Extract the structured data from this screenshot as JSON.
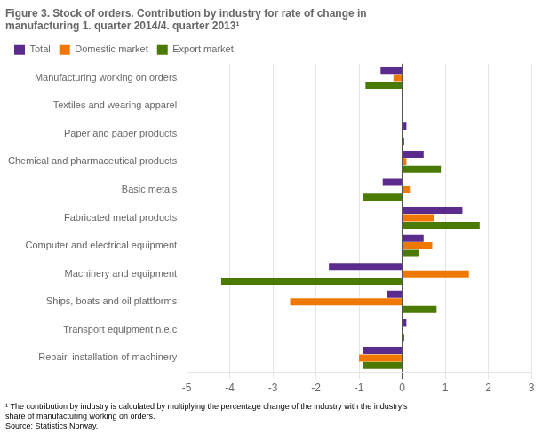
{
  "chart_data": {
    "type": "bar",
    "orientation": "horizontal",
    "title": "Figure 3. Stock of orders. Contribution by industry for rate of change in\nmanufacturing 1. quarter 2014/4. quarter 2013¹",
    "footnote": "¹ The contribution by industry is calculated by multiplying the percentage change of the industry with the industry's\nshare of manufacturing working on orders.\nSource: Statistics Norway.",
    "categories": [
      "Manufacturing working on orders",
      "Textiles and wearing apparel",
      "Paper and paper products",
      "Chemical and pharmaceutical products",
      "Basic metals",
      "Fabricated metal products",
      "Computer and electrical equipment",
      "Machinery and equipment",
      "Ships, boats and oil plattforms",
      "Transport equipment n.e.c",
      "Repair, installation of machinery"
    ],
    "series": [
      {
        "name": "Total",
        "color": "#5b2c8d",
        "values": [
          -0.5,
          0.0,
          0.1,
          0.5,
          -0.45,
          1.4,
          0.5,
          -1.7,
          -0.35,
          0.1,
          -0.9
        ]
      },
      {
        "name": "Domestic market",
        "color": "#f07800",
        "values": [
          -0.2,
          0.0,
          0.0,
          0.1,
          0.2,
          0.75,
          0.7,
          1.55,
          -2.6,
          0.0,
          -1.0
        ]
      },
      {
        "name": "Export market",
        "color": "#4a7a00",
        "values": [
          -0.85,
          0.0,
          0.05,
          0.9,
          -0.9,
          1.8,
          0.4,
          -4.2,
          0.8,
          0.05,
          -0.9
        ]
      }
    ],
    "xlim": [
      -5,
      3
    ],
    "xticks": [
      -5,
      -4,
      -3,
      -2,
      -1,
      0,
      1,
      2,
      3
    ],
    "grid": true,
    "legend": "upper left"
  }
}
